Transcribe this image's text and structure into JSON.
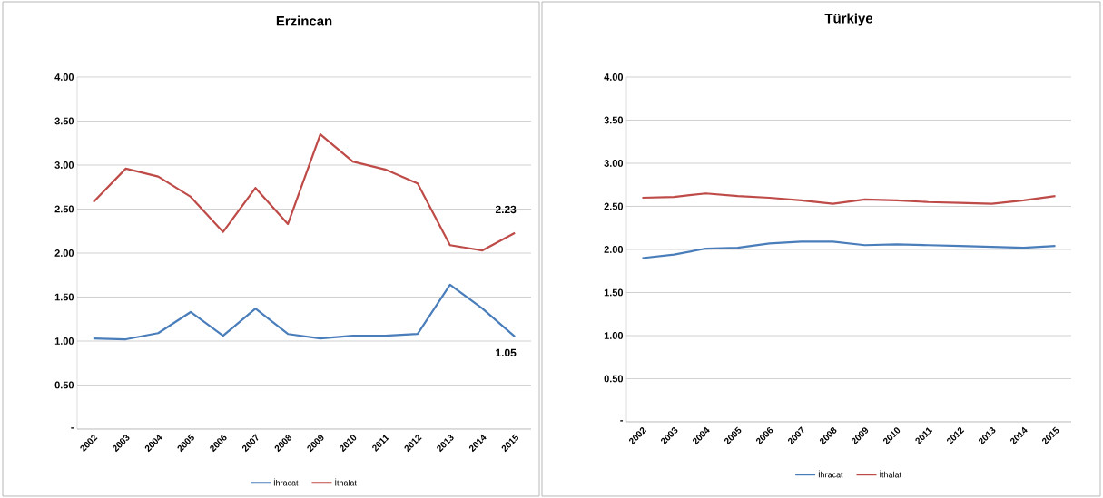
{
  "chart_data": [
    {
      "type": "line",
      "title": "Erzincan",
      "categories": [
        "2002",
        "2003",
        "2004",
        "2005",
        "2006",
        "2007",
        "2008",
        "2009",
        "2010",
        "2011",
        "2012",
        "2013",
        "2014",
        "2015"
      ],
      "series": [
        {
          "name": "İhracat",
          "color": "#4a7ebb",
          "values": [
            1.03,
            1.02,
            1.09,
            1.33,
            1.06,
            1.37,
            1.08,
            1.03,
            1.06,
            1.06,
            1.08,
            1.64,
            1.37,
            1.05
          ],
          "value_labels": [
            null,
            null,
            null,
            null,
            null,
            null,
            null,
            null,
            null,
            null,
            null,
            null,
            null,
            "1.05"
          ]
        },
        {
          "name": "İthalat",
          "color": "#be4b48",
          "values": [
            2.58,
            2.96,
            2.87,
            2.64,
            2.24,
            2.74,
            2.33,
            3.35,
            3.04,
            2.95,
            2.79,
            2.09,
            2.03,
            2.23
          ],
          "value_labels": [
            null,
            null,
            null,
            null,
            null,
            null,
            null,
            null,
            null,
            null,
            null,
            null,
            null,
            "2.23"
          ]
        }
      ],
      "ylim": [
        0,
        4
      ],
      "yticks": [
        {
          "value": 0,
          "label": "-"
        },
        {
          "value": 0.5,
          "label": "0.50"
        },
        {
          "value": 1,
          "label": "1.00"
        },
        {
          "value": 1.5,
          "label": "1.50"
        },
        {
          "value": 2,
          "label": "2.00"
        },
        {
          "value": 2.5,
          "label": "2.50"
        },
        {
          "value": 3,
          "label": "3.00"
        },
        {
          "value": 3.5,
          "label": "3.50"
        },
        {
          "value": 4,
          "label": "4.00"
        }
      ],
      "grid": "y",
      "legend": "bottom",
      "marker": "none",
      "line_style": "solid"
    },
    {
      "type": "line",
      "title": "Türkiye",
      "categories": [
        "2002",
        "2003",
        "2004",
        "2005",
        "2006",
        "2007",
        "2008",
        "2009",
        "2010",
        "2011",
        "2012",
        "2013",
        "2014",
        "2015"
      ],
      "series": [
        {
          "name": "İhracat",
          "color": "#4a7ebb",
          "values": [
            1.9,
            1.94,
            2.01,
            2.02,
            2.07,
            2.09,
            2.09,
            2.05,
            2.06,
            2.05,
            2.04,
            2.03,
            2.02,
            2.04
          ]
        },
        {
          "name": "İthalat",
          "color": "#be4b48",
          "values": [
            2.6,
            2.61,
            2.65,
            2.62,
            2.6,
            2.57,
            2.53,
            2.58,
            2.57,
            2.55,
            2.54,
            2.53,
            2.57,
            2.62
          ]
        }
      ],
      "ylim": [
        0,
        4
      ],
      "yticks": [
        {
          "value": 0,
          "label": "-"
        },
        {
          "value": 0.5,
          "label": "0.50"
        },
        {
          "value": 1,
          "label": "1.00"
        },
        {
          "value": 1.5,
          "label": "1.50"
        },
        {
          "value": 2,
          "label": "2.00"
        },
        {
          "value": 2.5,
          "label": "2.50"
        },
        {
          "value": 3,
          "label": "3.00"
        },
        {
          "value": 3.5,
          "label": "3.50"
        },
        {
          "value": 4,
          "label": "4.00"
        }
      ],
      "grid": "y",
      "legend": "bottom",
      "marker": "none",
      "line_style": "solid"
    }
  ]
}
